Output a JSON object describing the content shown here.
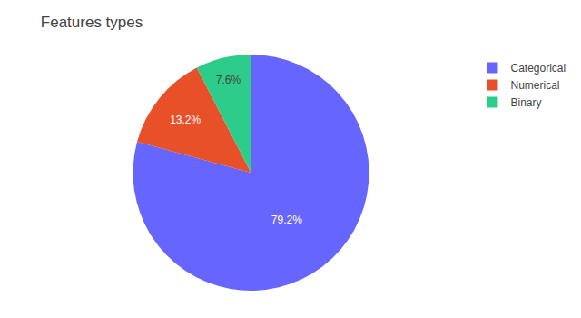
{
  "chart_data": {
    "type": "pie",
    "title": "Features types",
    "categories": [
      "Categorical",
      "Numerical",
      "Binary"
    ],
    "values": [
      79.2,
      13.2,
      7.6
    ],
    "value_labels": [
      "79.2%",
      "13.2%",
      "7.6%"
    ],
    "colors": [
      "#6666ff",
      "#e8502a",
      "#2ecc8a"
    ],
    "data_labels": true,
    "legend": "upper right"
  }
}
